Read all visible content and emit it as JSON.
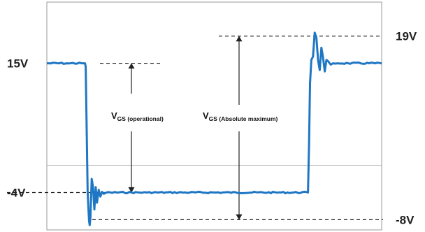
{
  "chart_data": {
    "type": "line",
    "title": "",
    "xlabel": "",
    "ylabel": "",
    "ylim": [
      -9.5,
      24
    ],
    "grid": false,
    "levels": [
      {
        "id": "v15",
        "label": "15V",
        "value": 15
      },
      {
        "id": "v19",
        "label": "19V",
        "value": 19
      },
      {
        "id": "vm4",
        "label": "-4V",
        "value": -4
      },
      {
        "id": "vm8",
        "label": "-8V",
        "value": -8
      }
    ],
    "annotations": [
      {
        "id": "operational",
        "main": "V",
        "sub": "GS (operational)",
        "from": 15,
        "to": -4
      },
      {
        "id": "absolute",
        "main": "V",
        "sub": "GS  (Absolute maximum)",
        "from": 19,
        "to": -8
      }
    ],
    "series": [
      {
        "color": "#1f77c4",
        "x": [
          0,
          0.06,
          0.114,
          0.116,
          0.122,
          0.126,
          0.128,
          0.13,
          0.134,
          0.138,
          0.142,
          0.146,
          0.15,
          0.155,
          0.16,
          0.165,
          0.17,
          0.178,
          0.19,
          0.3,
          0.5,
          0.7,
          0.78,
          0.783,
          0.786,
          0.79,
          0.795,
          0.8,
          0.805,
          0.81,
          0.815,
          0.82,
          0.825,
          0.83,
          0.835,
          0.84,
          0.848,
          0.855,
          0.87,
          0.9,
          1.0
        ],
        "y": [
          15,
          15,
          15,
          14.5,
          -4,
          -8.2,
          -8.8,
          -7.8,
          -2,
          -3.2,
          -6.5,
          -3.2,
          -5.5,
          -3.6,
          -4.6,
          -3.9,
          -4.2,
          -4,
          -4,
          -4,
          -4,
          -4,
          -4,
          3,
          12,
          15.5,
          16,
          19.5,
          18.8,
          15.5,
          14,
          17.3,
          15.8,
          13.8,
          15.5,
          15.3,
          14.8,
          15,
          15,
          15,
          15
        ]
      }
    ]
  }
}
